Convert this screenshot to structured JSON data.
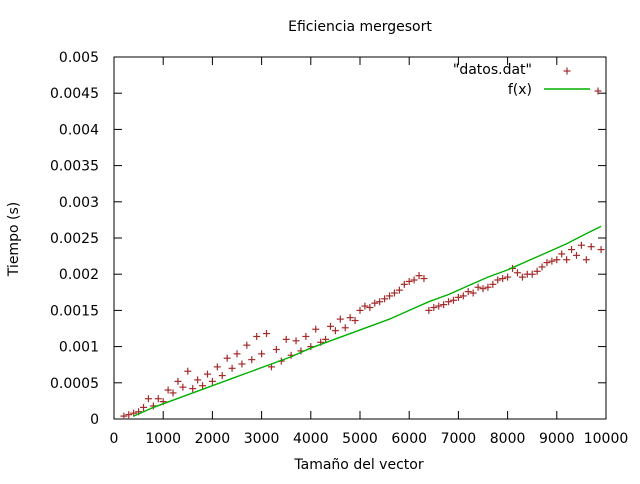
{
  "chart_data": {
    "type": "scatter",
    "title": "Eficiencia mergesort",
    "xlabel": "Tamaño del vector",
    "ylabel": "Tiempo (s)",
    "xlim": [
      0,
      10000
    ],
    "ylim": [
      0,
      0.005
    ],
    "xticks": [
      0,
      1000,
      2000,
      3000,
      4000,
      5000,
      6000,
      7000,
      8000,
      9000,
      10000
    ],
    "yticks": [
      0,
      0.0005,
      0.001,
      0.0015,
      0.002,
      0.0025,
      0.003,
      0.0035,
      0.004,
      0.0045,
      0.005
    ],
    "xtick_labels": [
      "0",
      "1000",
      "2000",
      "3000",
      "4000",
      "5000",
      "6000",
      "7000",
      "8000",
      "9000",
      "10000"
    ],
    "ytick_labels": [
      "0",
      "0.0005",
      "0.001",
      "0.0015",
      "0.002",
      "0.0025",
      "0.003",
      "0.0035",
      "0.004",
      "0.0045",
      "0.005"
    ],
    "grid": false,
    "legend_position": "top-right",
    "series": [
      {
        "name": "\"datos.dat\"",
        "type": "scatter",
        "marker": "+",
        "color": "#a52a2a",
        "points": [
          [
            200,
            4e-05
          ],
          [
            300,
            6e-05
          ],
          [
            400,
            8e-05
          ],
          [
            500,
            0.0001
          ],
          [
            600,
            0.00016
          ],
          [
            700,
            0.00028
          ],
          [
            800,
            0.00018
          ],
          [
            900,
            0.00028
          ],
          [
            1000,
            0.00024
          ],
          [
            1100,
            0.0004
          ],
          [
            1200,
            0.00036
          ],
          [
            1300,
            0.00052
          ],
          [
            1400,
            0.00044
          ],
          [
            1500,
            0.00066
          ],
          [
            1600,
            0.00042
          ],
          [
            1700,
            0.00054
          ],
          [
            1800,
            0.00046
          ],
          [
            1900,
            0.00062
          ],
          [
            2000,
            0.00052
          ],
          [
            2100,
            0.00072
          ],
          [
            2200,
            0.0006
          ],
          [
            2300,
            0.00084
          ],
          [
            2400,
            0.0007
          ],
          [
            2500,
            0.0009
          ],
          [
            2600,
            0.00076
          ],
          [
            2700,
            0.00102
          ],
          [
            2800,
            0.00082
          ],
          [
            2900,
            0.00114
          ],
          [
            3000,
            0.0009
          ],
          [
            3100,
            0.00118
          ],
          [
            3200,
            0.00072
          ],
          [
            3300,
            0.00096
          ],
          [
            3400,
            0.0008
          ],
          [
            3500,
            0.0011
          ],
          [
            3600,
            0.00088
          ],
          [
            3700,
            0.00108
          ],
          [
            3800,
            0.00094
          ],
          [
            3900,
            0.00114
          ],
          [
            4000,
            0.001
          ],
          [
            4100,
            0.00124
          ],
          [
            4200,
            0.00106
          ],
          [
            4300,
            0.0011
          ],
          [
            4400,
            0.00128
          ],
          [
            4500,
            0.00122
          ],
          [
            4600,
            0.00138
          ],
          [
            4700,
            0.00126
          ],
          [
            4800,
            0.0014
          ],
          [
            4900,
            0.00136
          ],
          [
            5000,
            0.0015
          ],
          [
            5100,
            0.00156
          ],
          [
            5200,
            0.00154
          ],
          [
            5300,
            0.0016
          ],
          [
            5400,
            0.00162
          ],
          [
            5500,
            0.00166
          ],
          [
            5600,
            0.0017
          ],
          [
            5700,
            0.00174
          ],
          [
            5800,
            0.00178
          ],
          [
            5900,
            0.00186
          ],
          [
            6000,
            0.0019
          ],
          [
            6100,
            0.00192
          ],
          [
            6200,
            0.00198
          ],
          [
            6300,
            0.00194
          ],
          [
            6400,
            0.0015
          ],
          [
            6500,
            0.00154
          ],
          [
            6600,
            0.00156
          ],
          [
            6700,
            0.00158
          ],
          [
            6800,
            0.00162
          ],
          [
            6900,
            0.00164
          ],
          [
            7000,
            0.00168
          ],
          [
            7100,
            0.0017
          ],
          [
            7200,
            0.00176
          ],
          [
            7300,
            0.00174
          ],
          [
            7400,
            0.00182
          ],
          [
            7500,
            0.0018
          ],
          [
            7600,
            0.00182
          ],
          [
            7700,
            0.00186
          ],
          [
            7800,
            0.00192
          ],
          [
            7900,
            0.00194
          ],
          [
            8000,
            0.00196
          ],
          [
            8100,
            0.00208
          ],
          [
            8200,
            0.00202
          ],
          [
            8300,
            0.00196
          ],
          [
            8400,
            0.002
          ],
          [
            8500,
            0.002
          ],
          [
            8600,
            0.00204
          ],
          [
            8700,
            0.0021
          ],
          [
            8800,
            0.00216
          ],
          [
            8900,
            0.00218
          ],
          [
            9000,
            0.0022
          ],
          [
            9100,
            0.00228
          ],
          [
            9200,
            0.0022
          ],
          [
            9300,
            0.00234
          ],
          [
            9400,
            0.00226
          ],
          [
            9500,
            0.0024
          ],
          [
            9600,
            0.0022
          ],
          [
            9700,
            0.00238
          ],
          [
            9900,
            0.00234
          ]
        ]
      },
      {
        "name": "f(x)",
        "type": "line",
        "color": "#00b000",
        "points": [
          [
            400,
            4e-05
          ],
          [
            800,
            0.00016
          ],
          [
            1200,
            0.00026
          ],
          [
            1600,
            0.00036
          ],
          [
            2000,
            0.00046
          ],
          [
            2400,
            0.00056
          ],
          [
            2800,
            0.00066
          ],
          [
            3200,
            0.00076
          ],
          [
            3600,
            0.00086
          ],
          [
            4000,
            0.00098
          ],
          [
            4400,
            0.00108
          ],
          [
            4800,
            0.00118
          ],
          [
            5200,
            0.00128
          ],
          [
            5600,
            0.00138
          ],
          [
            6000,
            0.0015
          ],
          [
            6400,
            0.00162
          ],
          [
            6800,
            0.00172
          ],
          [
            7200,
            0.00184
          ],
          [
            7600,
            0.00196
          ],
          [
            8000,
            0.00206
          ],
          [
            8400,
            0.00218
          ],
          [
            8800,
            0.0023
          ],
          [
            9200,
            0.00242
          ],
          [
            9600,
            0.00256
          ],
          [
            9900,
            0.00266
          ]
        ]
      }
    ]
  }
}
